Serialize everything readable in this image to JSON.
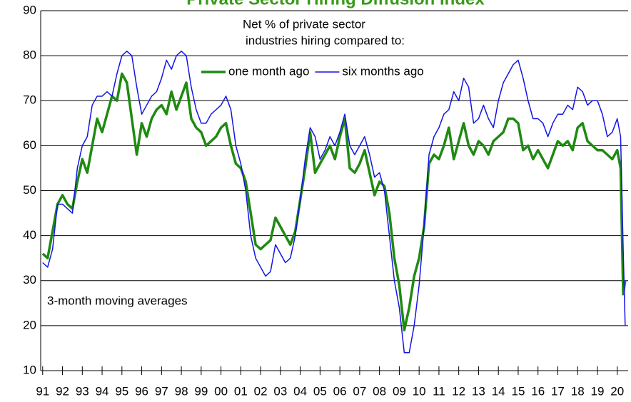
{
  "chart_data": {
    "type": "line",
    "title": "Private Sector Hiring Diffusion Index",
    "annotations": [
      "Net % of private sector",
      "industries hiring compared to:",
      "3-month moving averages"
    ],
    "x": [
      1991,
      1991.25,
      1991.5,
      1991.75,
      1992,
      1992.25,
      1992.5,
      1992.75,
      1993,
      1993.25,
      1993.5,
      1993.75,
      1994,
      1994.25,
      1994.5,
      1994.75,
      1995,
      1995.25,
      1995.5,
      1995.75,
      1996,
      1996.25,
      1996.5,
      1996.75,
      1997,
      1997.25,
      1997.5,
      1997.75,
      1998,
      1998.25,
      1998.5,
      1998.75,
      1999,
      1999.25,
      1999.5,
      1999.75,
      2000,
      2000.25,
      2000.5,
      2000.75,
      2001,
      2001.25,
      2001.5,
      2001.75,
      2002,
      2002.25,
      2002.5,
      2002.75,
      2003,
      2003.25,
      2003.5,
      2003.75,
      2004,
      2004.25,
      2004.5,
      2004.75,
      2005,
      2005.25,
      2005.5,
      2005.75,
      2006,
      2006.25,
      2006.5,
      2006.75,
      2007,
      2007.25,
      2007.5,
      2007.75,
      2008,
      2008.25,
      2008.5,
      2008.75,
      2009,
      2009.25,
      2009.5,
      2009.75,
      2010,
      2010.25,
      2010.5,
      2010.75,
      2011,
      2011.25,
      2011.5,
      2011.75,
      2012,
      2012.25,
      2012.5,
      2012.75,
      2013,
      2013.25,
      2013.5,
      2013.75,
      2014,
      2014.25,
      2014.5,
      2014.75,
      2015,
      2015.25,
      2015.5,
      2015.75,
      2016,
      2016.25,
      2016.5,
      2016.75,
      2017,
      2017.25,
      2017.5,
      2017.75,
      2018,
      2018.25,
      2018.5,
      2018.75,
      2019,
      2019.25,
      2019.5,
      2019.75,
      2020,
      2020.17,
      2020.3,
      2020.4
    ],
    "series": [
      {
        "name": "one month ago",
        "color": "#1f8a12",
        "width": 3.5,
        "values": [
          36,
          35,
          41,
          47,
          49,
          47,
          46,
          52,
          57,
          54,
          60,
          66,
          63,
          67,
          71,
          70,
          76,
          74,
          66,
          58,
          65,
          62,
          66,
          68,
          69,
          67,
          72,
          68,
          71,
          74,
          66,
          64,
          63,
          60,
          61,
          62,
          64,
          65,
          60,
          56,
          55,
          52,
          45,
          38,
          37,
          38,
          39,
          44,
          42,
          40,
          38,
          41,
          48,
          55,
          63,
          54,
          56,
          58,
          60,
          57,
          62,
          66,
          55,
          54,
          56,
          59,
          54,
          49,
          52,
          51,
          45,
          35,
          29,
          19,
          24,
          31,
          35,
          42,
          56,
          58,
          57,
          60,
          64,
          57,
          61,
          65,
          60,
          58,
          61,
          60,
          58,
          61,
          62,
          63,
          66,
          66,
          65,
          59,
          60,
          57,
          59,
          57,
          55,
          58,
          61,
          60,
          61,
          59,
          64,
          65,
          61,
          60,
          59,
          59,
          58,
          57,
          59,
          55,
          27,
          30
        ]
      },
      {
        "name": "six months ago",
        "color": "#1414e6",
        "width": 1.5,
        "values": [
          34,
          33,
          37,
          47,
          47,
          46,
          45,
          55,
          60,
          62,
          69,
          71,
          71,
          72,
          71,
          76,
          80,
          81,
          80,
          73,
          67,
          69,
          71,
          72,
          75,
          79,
          77,
          80,
          81,
          80,
          73,
          68,
          65,
          65,
          67,
          68,
          69,
          71,
          68,
          60,
          56,
          50,
          40,
          35,
          33,
          31,
          32,
          38,
          36,
          34,
          35,
          40,
          48,
          57,
          64,
          62,
          57,
          59,
          62,
          60,
          63,
          67,
          60,
          58,
          60,
          62,
          58,
          53,
          54,
          50,
          40,
          30,
          24,
          14,
          14,
          20,
          29,
          42,
          58,
          62,
          64,
          67,
          68,
          72,
          70,
          75,
          73,
          65,
          66,
          69,
          66,
          64,
          70,
          74,
          76,
          78,
          79,
          75,
          70,
          66,
          66,
          65,
          62,
          65,
          67,
          67,
          69,
          68,
          73,
          72,
          69,
          70,
          70,
          67,
          62,
          63,
          66,
          62,
          37,
          20
        ]
      }
    ],
    "xlim": [
      1990.9,
      2020.55
    ],
    "xticks": [
      {
        "value": 1991,
        "label": "91"
      },
      {
        "value": 1992,
        "label": "92"
      },
      {
        "value": 1993,
        "label": "93"
      },
      {
        "value": 1994,
        "label": "94"
      },
      {
        "value": 1995,
        "label": "95"
      },
      {
        "value": 1996,
        "label": "96"
      },
      {
        "value": 1997,
        "label": "97"
      },
      {
        "value": 1998,
        "label": "98"
      },
      {
        "value": 1999,
        "label": "99"
      },
      {
        "value": 2000,
        "label": "00"
      },
      {
        "value": 2001,
        "label": "01"
      },
      {
        "value": 2002,
        "label": "02"
      },
      {
        "value": 2003,
        "label": "03"
      },
      {
        "value": 2004,
        "label": "04"
      },
      {
        "value": 2005,
        "label": "05"
      },
      {
        "value": 2006,
        "label": "06"
      },
      {
        "value": 2007,
        "label": "07"
      },
      {
        "value": 2008,
        "label": "08"
      },
      {
        "value": 2009,
        "label": "09"
      },
      {
        "value": 2010,
        "label": "10"
      },
      {
        "value": 2011,
        "label": "11"
      },
      {
        "value": 2012,
        "label": "12"
      },
      {
        "value": 2013,
        "label": "13"
      },
      {
        "value": 2014,
        "label": "14"
      },
      {
        "value": 2015,
        "label": "15"
      },
      {
        "value": 2016,
        "label": "16"
      },
      {
        "value": 2017,
        "label": "17"
      },
      {
        "value": 2018,
        "label": "18"
      },
      {
        "value": 2019,
        "label": "19"
      },
      {
        "value": 2020,
        "label": "20"
      }
    ],
    "ylim": [
      10,
      90
    ],
    "yticks": [
      10,
      20,
      30,
      40,
      50,
      60,
      70,
      80,
      90
    ],
    "grid": true,
    "legend": "top"
  }
}
